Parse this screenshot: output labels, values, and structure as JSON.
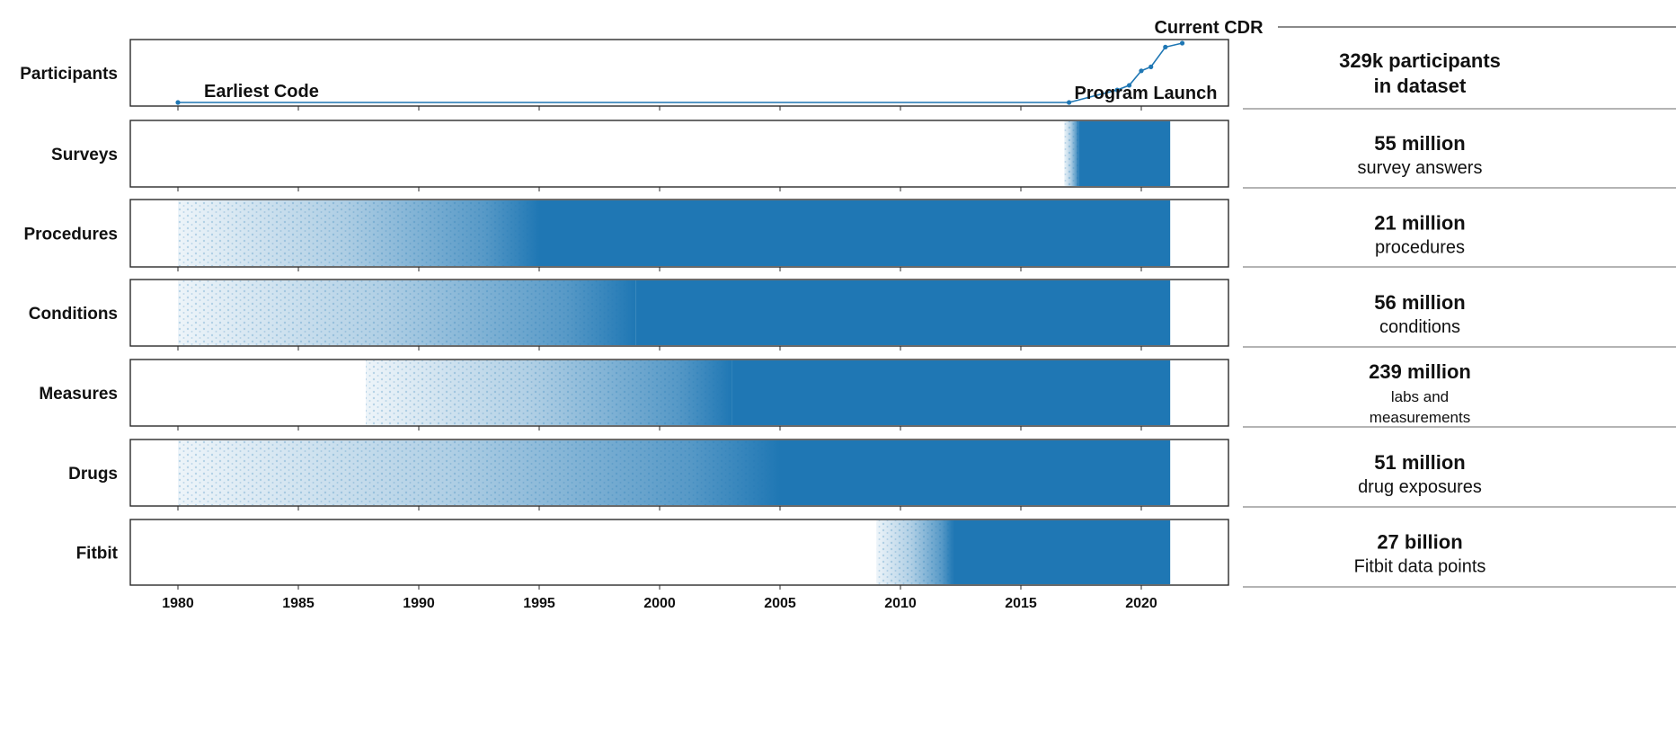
{
  "chart_data": {
    "type": "scatter",
    "xlim": [
      1978,
      2022
    ],
    "x_ticks": [
      1980,
      1985,
      1990,
      1995,
      2000,
      2005,
      2010,
      2015,
      2020
    ],
    "color": "#1f77b4",
    "rows": [
      {
        "name": "Participants",
        "kind": "line",
        "points": [
          [
            1980,
            0
          ],
          [
            2017,
            0
          ],
          [
            2019,
            95
          ],
          [
            2019.5,
            130
          ],
          [
            2020,
            240
          ],
          [
            2020.4,
            270
          ],
          [
            2021,
            420
          ],
          [
            2021.7,
            450
          ]
        ]
      },
      {
        "name": "Surveys",
        "kind": "density",
        "start": 2016.8,
        "solid_from": 2017.4,
        "end": 2021.2
      },
      {
        "name": "Procedures",
        "kind": "density",
        "start": 1980,
        "solid_from": 1995,
        "end": 2021.2
      },
      {
        "name": "Conditions",
        "kind": "density",
        "start": 1980,
        "solid_from": 1999,
        "end": 2021.2
      },
      {
        "name": "Measures",
        "kind": "density",
        "start": 1987.8,
        "solid_from": 2003,
        "end": 2021.2
      },
      {
        "name": "Drugs",
        "kind": "density",
        "start": 1980,
        "solid_from": 2005,
        "end": 2021.2
      },
      {
        "name": "Fitbit",
        "kind": "density",
        "start": 2009,
        "solid_from": 2012.2,
        "end": 2021.2
      }
    ],
    "annotations": {
      "current_cdr": "Current CDR",
      "earliest_code": "Earliest Code",
      "program_launch": "Program Launch"
    },
    "summaries": [
      {
        "value": "329k participants",
        "desc": "in dataset"
      },
      {
        "value": "55 million",
        "desc": "survey answers"
      },
      {
        "value": "21 million",
        "desc": "procedures"
      },
      {
        "value": "56 million",
        "desc": "conditions"
      },
      {
        "value": "239 million",
        "desc": "labs and",
        "desc2": "measurements"
      },
      {
        "value": "51 million",
        "desc": "drug exposures"
      },
      {
        "value": "27 billion",
        "desc": "Fitbit data points"
      }
    ]
  }
}
